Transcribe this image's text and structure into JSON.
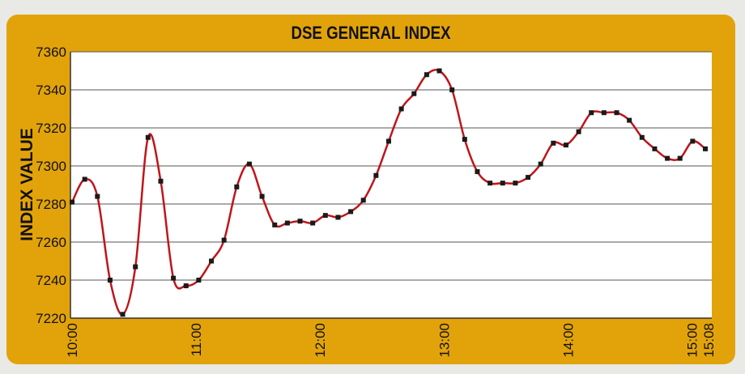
{
  "chart_data": {
    "type": "line",
    "title": "DSE GENERAL INDEX",
    "xlabel": "",
    "ylabel": "INDEX VALUE",
    "ylim": [
      7220,
      7360
    ],
    "yticks": [
      7220,
      7240,
      7260,
      7280,
      7300,
      7320,
      7340,
      7360
    ],
    "xticks": [
      "10:00",
      "11:00",
      "12:00",
      "13:00",
      "14:00",
      "15:00",
      "15:08"
    ],
    "grid": "horizontal",
    "line_color": "#c0151a",
    "marker_color": "#1a1a1a",
    "series": [
      {
        "values": [
          7281,
          7293,
          7284,
          7240,
          7222,
          7247,
          7315,
          7292,
          7241,
          7237,
          7240,
          7250,
          7261,
          7289,
          7301,
          7284,
          7269,
          7270,
          7271,
          7270,
          7274,
          7273,
          7276,
          7282,
          7295,
          7313,
          7330,
          7338,
          7348,
          7350,
          7340,
          7314,
          7297,
          7291,
          7291,
          7291,
          7294,
          7301,
          7312,
          7311,
          7318,
          7328,
          7328,
          7328,
          7324,
          7315,
          7309,
          7304,
          7304,
          7313,
          7309
        ]
      }
    ]
  }
}
